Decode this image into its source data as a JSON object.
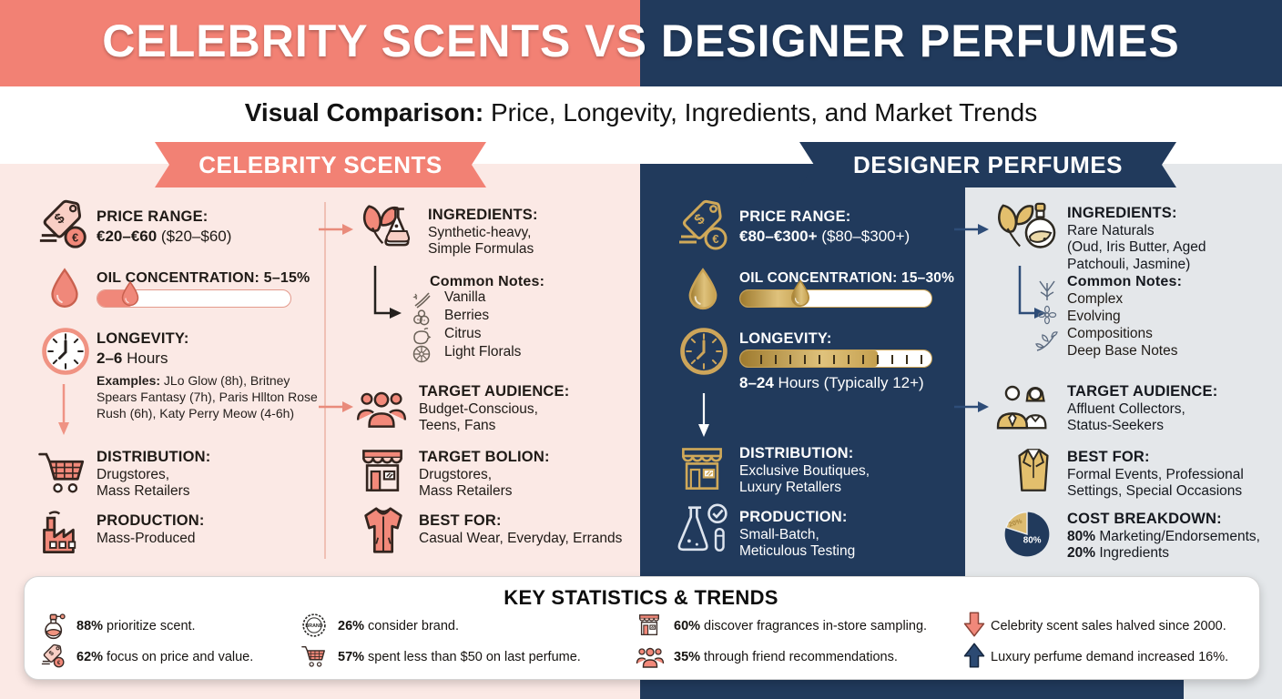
{
  "header": {
    "title": "CELEBRITY SCENTS VS DESIGNER PERFUMES",
    "subtitle_bold": "Visual Comparison:",
    "subtitle_rest": " Price, Longevity, Ingredients, and Market Trends"
  },
  "left": {
    "ribbon": "CELEBRITY SCENTS",
    "price": {
      "label": "PRICE RANGE:",
      "value_bold": "€20–€60",
      "value_rest": " ($20–$60)",
      "icon": "price-tag"
    },
    "oil": {
      "label": "OIL CONCENTRATION: 5–15%",
      "fill_pct": 18,
      "icon": "droplet"
    },
    "longevity": {
      "label": "LONGEVITY:",
      "value_bold": "2–6",
      "value_rest": " Hours",
      "icon": "clock"
    },
    "examples_bold": "Examples:",
    "examples_rest": " JLo Glow (8h), Britney Spears Fantasy (7h), Paris Hllton Rose Rush (6h), Katy Perry Meow (4-6h)",
    "distribution": {
      "label": "DISTRIBUTION:",
      "line1": "Drugstores,",
      "line2": "Mass Retailers",
      "icon": "shopping-cart"
    },
    "production": {
      "label": "PRODUCTION:",
      "line1": "Mass-Produced",
      "icon": "factory"
    },
    "ingredients": {
      "label": "INGREDIENTS:",
      "line1": "Synthetic-heavy,",
      "line2": "Simple Formulas",
      "icon": "leaf-flask"
    },
    "common_notes": {
      "label": "Common Notes:",
      "items": [
        "Vanilla",
        "Berries",
        "Citrus",
        "Light Florals"
      ]
    },
    "audience": {
      "label": "TARGET AUDIENCE:",
      "line1": "Budget-Conscious,",
      "line2": "Teens, Fans",
      "icon": "people-group"
    },
    "bolion": {
      "label": "TARGET BOLION:",
      "line1": "Drugstores,",
      "line2": "Mass Retailers",
      "icon": "storefront"
    },
    "best_for": {
      "label": "BEST FOR:",
      "line1": "Casual Wear, Everyday, Errands",
      "icon": "jacket"
    }
  },
  "right": {
    "ribbon": "DESIGNER PERFUMES",
    "price": {
      "label": "PRICE RANGE:",
      "value_bold": "€80–€300+",
      "value_rest": " ($80–$300+)",
      "icon": "price-tag"
    },
    "oil": {
      "label": "OIL CONCENTRATION: 15–30%",
      "fill_pct": 33,
      "icon": "droplet"
    },
    "longevity": {
      "label": "LONGEVITY:",
      "value_bold": "8–24",
      "value_rest": " Hours (Typically 12+)",
      "fill_pct": 72,
      "icon": "clock"
    },
    "distribution": {
      "label": "DISTRIBUTION:",
      "line1": "Exclusive Boutiques,",
      "line2": "Luxury Retallers",
      "icon": "boutique"
    },
    "production": {
      "label": "PRODUCTION:",
      "line1": "Small-Batch,",
      "line2": "Meticulous Testing",
      "icon": "flask-check"
    },
    "ingredients": {
      "label": "INGREDIENTS:",
      "line1": "Rare Naturals",
      "line2": "(Oud, Iris Butter, Aged",
      "line3": "Patchouli, Jasmine)",
      "icon": "leaf-bottle"
    },
    "common_notes": {
      "label": "Common Notes:",
      "items": [
        "Complex",
        "Evolving",
        "Compositions",
        "Deep Base Notes"
      ]
    },
    "audience": {
      "label": "TARGET AUDIENCE:",
      "line1": "Affluent Collectors,",
      "line2": "Status-Seekers",
      "icon": "two-people"
    },
    "best_for": {
      "label": "BEST FOR:",
      "line1": "Formal Events, Professional",
      "line2": "Settings, Special Occasions",
      "icon": "suit-jacket"
    },
    "cost": {
      "label": "COST BREAKDOWN:",
      "line1_bold": "80%",
      "line1_rest": " Marketing/Endorsements,",
      "line2_bold": "20%",
      "line2_rest": " Ingredients",
      "icon": "pie-chart",
      "pie": {
        "marketing_pct": 80,
        "ingredients_pct": 20,
        "main_label": "80%",
        "slice_label": "20%"
      }
    }
  },
  "stats": {
    "title": "KEY STATISTICS & TRENDS",
    "brand_badge_text": "BRAND",
    "items": [
      {
        "bold": "88%",
        "rest": " prioritize scent.",
        "icon": "perfume-bottle"
      },
      {
        "bold": "62%",
        "rest": " focus on price and value.",
        "icon": "price-tag"
      },
      {
        "bold": "26%",
        "rest": " consider brand.",
        "icon": "brand-badge"
      },
      {
        "bold": "57%",
        "rest": " spent less than $50 on last perfume.",
        "icon": "shopping-cart"
      },
      {
        "bold": "60%",
        "rest": " discover fragrances in-store sampling.",
        "icon": "storefront"
      },
      {
        "bold": "35%",
        "rest": " through friend recommendations.",
        "icon": "people-group"
      },
      {
        "bold": "",
        "rest": "Celebrity scent sales halved since 2000.",
        "icon": "arrow-down"
      },
      {
        "bold": "",
        "rest": "Luxury perfume demand increased 16%.",
        "icon": "arrow-up"
      }
    ]
  },
  "colors": {
    "coral": "#F28174",
    "navy": "#213A5C",
    "pink_bg": "#FBE9E5",
    "gray_bg": "#E4E7EA",
    "gold": "#CDA55A",
    "white": "#FFFFFF"
  }
}
